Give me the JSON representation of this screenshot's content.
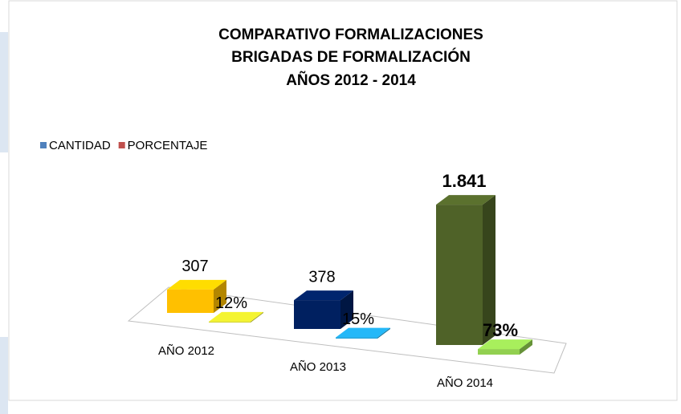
{
  "chart_data": {
    "type": "bar3d",
    "title": [
      "COMPARATIVO FORMALIZACIONES",
      "BRIGADAS DE FORMALIZACIÓN",
      "AÑOS 2012 - 2014"
    ],
    "categories": [
      "AÑO 2012",
      "AÑO 2013",
      "AÑO 2014"
    ],
    "series": [
      {
        "name": "CANTIDAD",
        "color": "#4f81bd",
        "colors": [
          "#ffc000",
          "#002060",
          "#4f6228"
        ],
        "values": [
          307,
          378,
          1841
        ],
        "value_labels": [
          "307",
          "378",
          "1.841"
        ]
      },
      {
        "name": "PORCENTAJE",
        "color": "#c0504d",
        "colors": [
          "#d4d42a",
          "#1fa0d8",
          "#92d050"
        ],
        "values": [
          12,
          15,
          73
        ],
        "value_labels": [
          "12%",
          "15%",
          "73%"
        ]
      }
    ],
    "legend": "top-left"
  }
}
